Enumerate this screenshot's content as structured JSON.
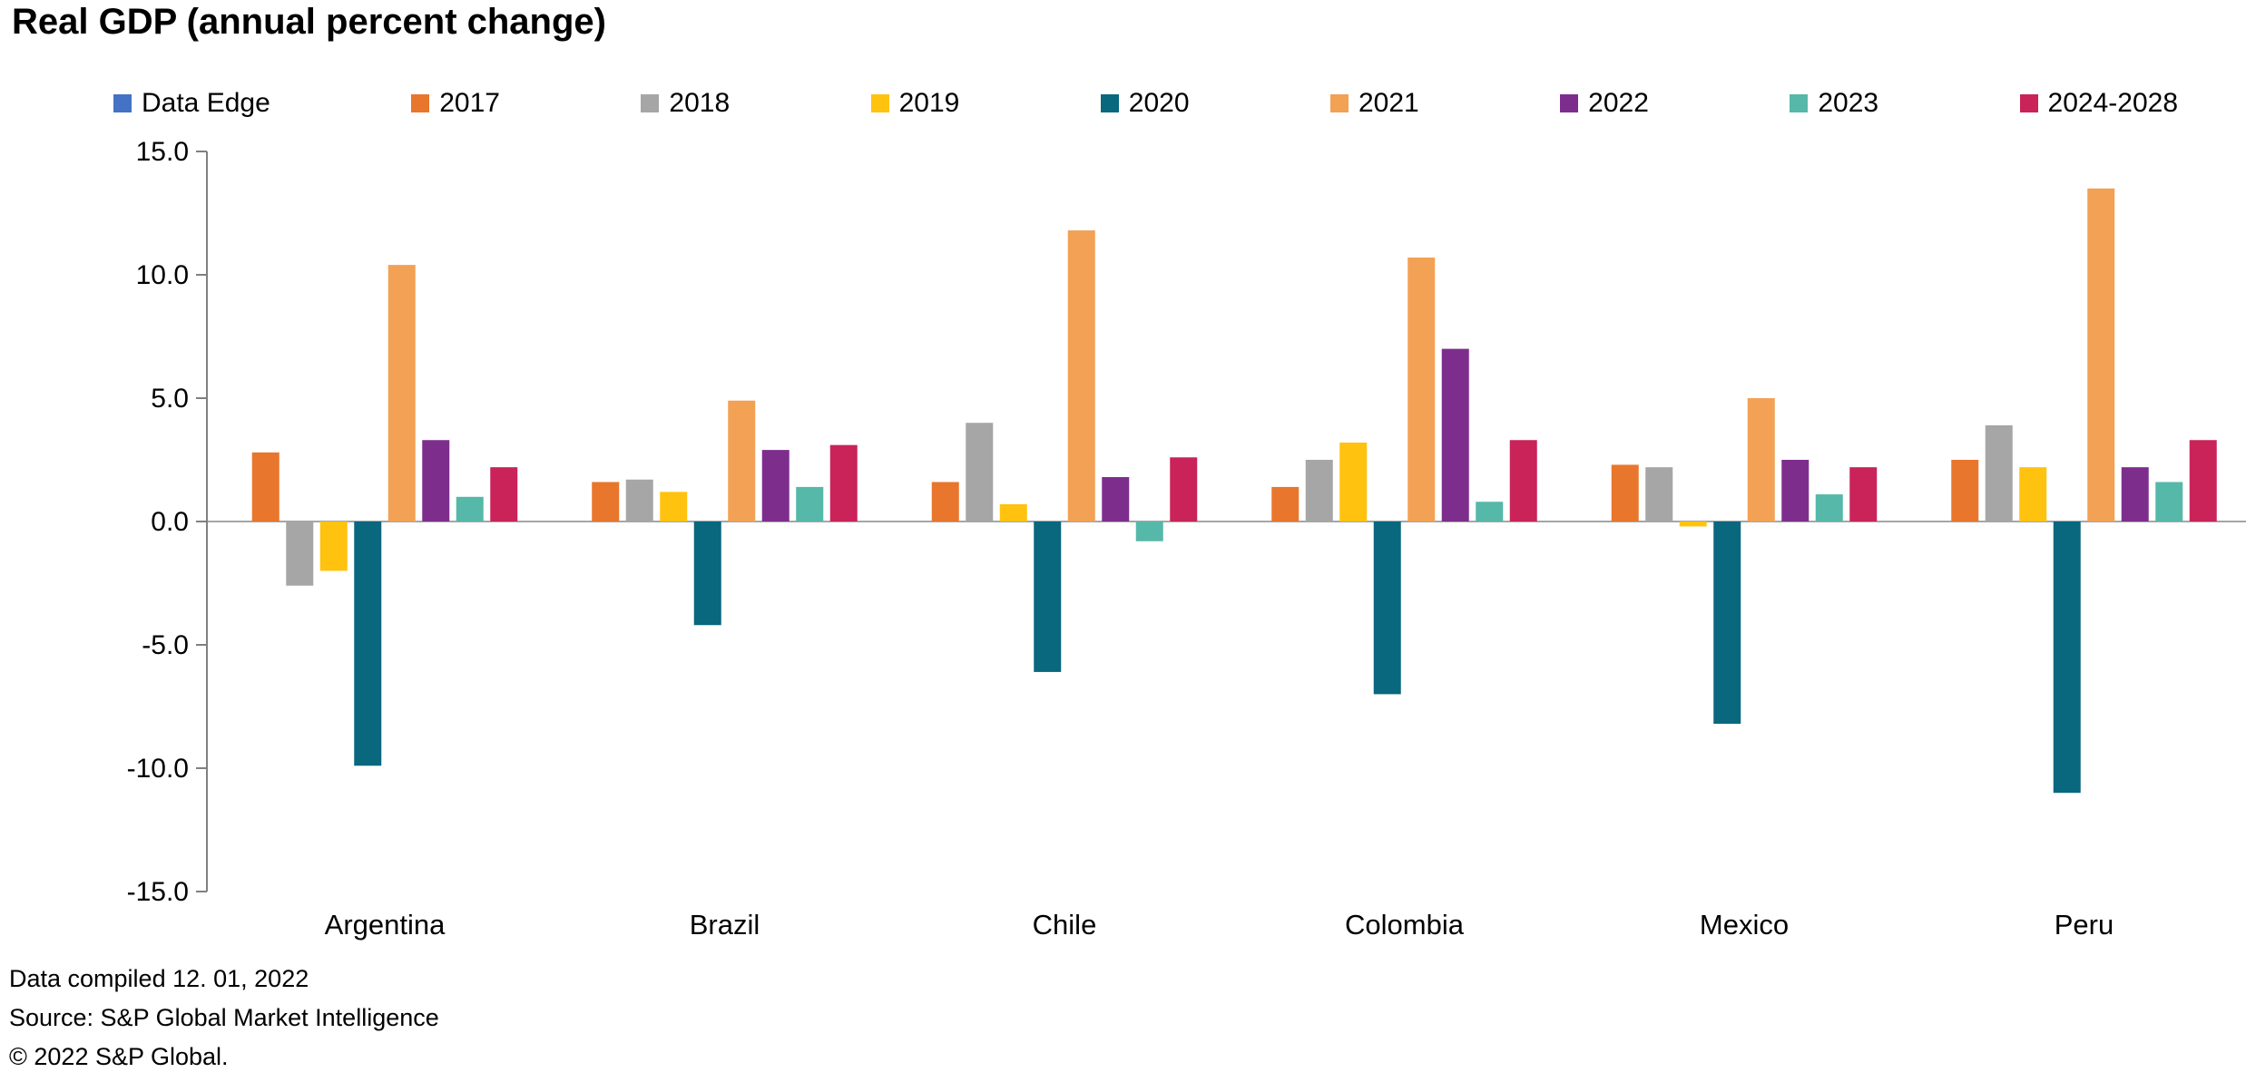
{
  "title": "Real GDP (annual percent change)",
  "legend": [
    {
      "label": "Data Edge",
      "color": "#4472C4"
    },
    {
      "label": "2017",
      "color": "#E8762D"
    },
    {
      "label": "2018",
      "color": "#A6A6A6"
    },
    {
      "label": "2019",
      "color": "#FFC20E"
    },
    {
      "label": "2020",
      "color": "#09677E"
    },
    {
      "label": "2021",
      "color": "#F2A155"
    },
    {
      "label": "2022",
      "color": "#7D2E8D"
    },
    {
      "label": "2023",
      "color": "#55B8A9"
    },
    {
      "label": "2024-2028",
      "color": "#C9235A"
    }
  ],
  "chart_data": {
    "type": "bar",
    "title": "Real GDP (annual percent change)",
    "categories": [
      "Argentina",
      "Brazil",
      "Chile",
      "Colombia",
      "Mexico",
      "Peru"
    ],
    "series": [
      {
        "name": "2017",
        "color": "#E8762D",
        "values": [
          2.8,
          1.6,
          1.6,
          1.4,
          2.3,
          2.5
        ]
      },
      {
        "name": "2018",
        "color": "#A6A6A6",
        "values": [
          -2.6,
          1.7,
          4.0,
          2.5,
          2.2,
          3.9
        ]
      },
      {
        "name": "2019",
        "color": "#FFC20E",
        "values": [
          -2.0,
          1.2,
          0.7,
          3.2,
          -0.2,
          2.2
        ]
      },
      {
        "name": "2020",
        "color": "#09677E",
        "values": [
          -9.9,
          -4.2,
          -6.1,
          -7.0,
          -8.2,
          -11.0
        ]
      },
      {
        "name": "2021",
        "color": "#F2A155",
        "values": [
          10.4,
          4.9,
          11.8,
          10.7,
          5.0,
          13.5
        ]
      },
      {
        "name": "2022",
        "color": "#7D2E8D",
        "values": [
          3.3,
          2.9,
          1.8,
          7.0,
          2.5,
          2.2
        ]
      },
      {
        "name": "2023",
        "color": "#55B8A9",
        "values": [
          1.0,
          1.4,
          -0.8,
          0.8,
          1.1,
          1.6
        ]
      },
      {
        "name": "2024-2028",
        "color": "#C9235A",
        "values": [
          2.2,
          3.1,
          2.6,
          3.3,
          2.2,
          3.3
        ]
      }
    ],
    "xlabel": "",
    "ylabel": "",
    "ylim": [
      -15,
      15
    ],
    "yticks": [
      15,
      10,
      5,
      0,
      -5,
      -10,
      -15
    ],
    "ytick_labels": [
      "15.0",
      "10.0",
      "5.0",
      "0.0",
      "-5.0",
      "-10.0",
      "-15.0"
    ],
    "grid": "zero-line-only",
    "legend_position": "top"
  },
  "footer": {
    "compiled": "Data compiled 12. 01, 2022",
    "source": "Source: S&P Global Market Intelligence",
    "copyright": "© 2022 S&P Global."
  }
}
